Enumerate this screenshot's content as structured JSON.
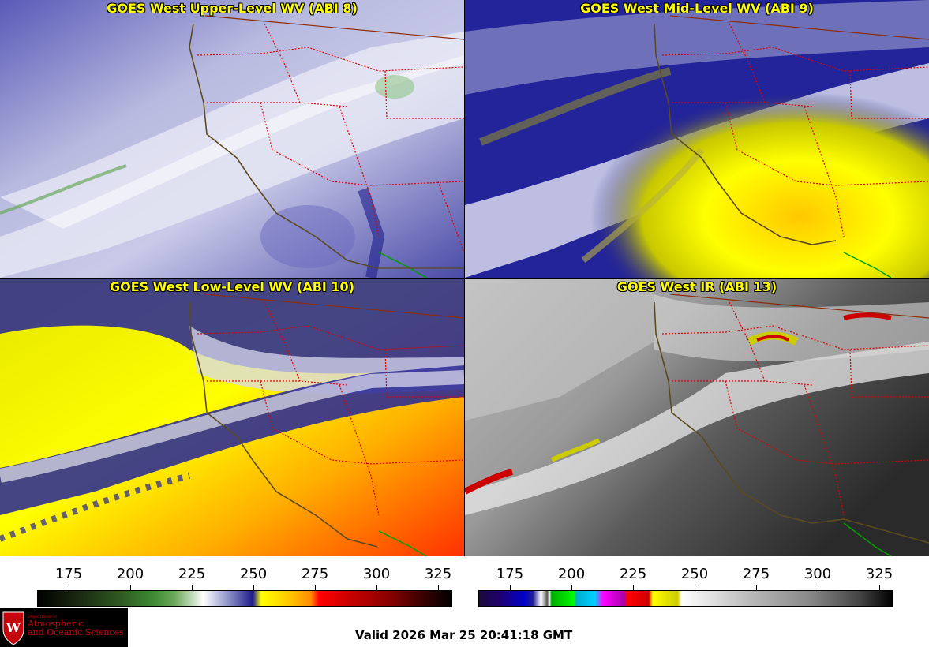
{
  "panels": [
    {
      "title": "GOES West Upper-Level WV (ABI 8)"
    },
    {
      "title": "GOES West Mid-Level WV (ABI 9)"
    },
    {
      "title": "GOES West Low-Level WV (ABI 10)"
    },
    {
      "title": "GOES West IR (ABI 13)"
    }
  ],
  "scales": {
    "left": {
      "ticks": [
        "175",
        "200",
        "225",
        "250",
        "275",
        "300",
        "325"
      ]
    },
    "right": {
      "ticks": [
        "175",
        "200",
        "225",
        "250",
        "275",
        "300",
        "325"
      ]
    }
  },
  "logo": {
    "department_line": "Department of",
    "name_line1": "Atmospheric",
    "name_line2": "and Oceanic Sciences"
  },
  "valid_time": "Valid 2026 Mar 25 20:41:18 GMT"
}
